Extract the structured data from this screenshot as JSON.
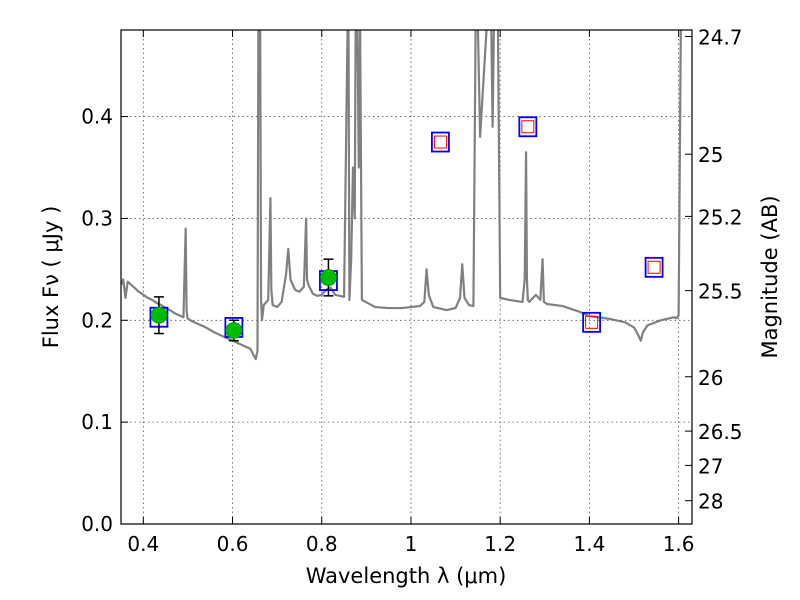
{
  "chart_data": {
    "type": "line",
    "xlabel": "Wavelength  λ (μm)",
    "ylabel": "Flux  Fν  ( μJy )",
    "y2label": "Magnitude (AB)",
    "xlim": [
      0.35,
      1.63
    ],
    "ylim": [
      0.0,
      0.485
    ],
    "grid": true,
    "x_ticks": [
      0.4,
      0.6,
      0.8,
      1.0,
      1.2,
      1.4,
      1.6
    ],
    "x_tick_labels": [
      "0.4",
      "0.6",
      "0.8",
      "1",
      "1.2",
      "1.4",
      "1.6"
    ],
    "y_ticks": [
      0.0,
      0.1,
      0.2,
      0.3,
      0.4
    ],
    "y_tick_labels": [
      "0.0",
      "0.1",
      "0.2",
      "0.3",
      "0.4"
    ],
    "y2_ticks": [
      {
        "label": "24.7",
        "mag": 24.7
      },
      {
        "label": "25",
        "mag": 25.0
      },
      {
        "label": "25.2",
        "mag": 25.2
      },
      {
        "label": "25.5",
        "mag": 25.5
      },
      {
        "label": "26",
        "mag": 26.0
      },
      {
        "label": "26.5",
        "mag": 26.5
      },
      {
        "label": "27",
        "mag": 27.0
      },
      {
        "label": "28",
        "mag": 28.0
      }
    ],
    "colors": {
      "spectrum": "#808080",
      "observed_marker": "#00bb00",
      "model_box": "#0000ff",
      "upper_limit_box": "#ff0000",
      "errorbar": "#000000",
      "grid": "#555555"
    },
    "series": [
      {
        "style": "spectrum-line",
        "x": [
          0.35,
          0.355,
          0.36,
          0.365,
          0.37,
          0.375,
          0.38,
          0.39,
          0.4,
          0.41,
          0.42,
          0.43,
          0.44,
          0.45,
          0.46,
          0.47,
          0.48,
          0.49,
          0.495,
          0.497,
          0.499,
          0.505,
          0.52,
          0.54,
          0.56,
          0.58,
          0.6,
          0.62,
          0.64,
          0.648,
          0.652,
          0.656,
          0.658,
          0.66,
          0.662,
          0.664,
          0.666,
          0.67,
          0.68,
          0.685,
          0.687,
          0.69,
          0.7,
          0.71,
          0.72,
          0.725,
          0.73,
          0.74,
          0.75,
          0.76,
          0.765,
          0.767,
          0.77,
          0.78,
          0.79,
          0.8,
          0.81,
          0.82,
          0.83,
          0.84,
          0.85,
          0.858,
          0.86,
          0.862,
          0.866,
          0.87,
          0.874,
          0.876,
          0.88,
          0.883,
          0.886,
          0.89,
          0.92,
          0.95,
          0.98,
          1.0,
          1.02,
          1.03,
          1.035,
          1.04,
          1.05,
          1.08,
          1.1,
          1.11,
          1.115,
          1.12,
          1.13,
          1.14,
          1.145,
          1.148,
          1.15,
          1.155,
          1.17,
          1.18,
          1.183,
          1.186,
          1.19,
          1.195,
          1.2,
          1.22,
          1.25,
          1.255,
          1.258,
          1.26,
          1.262,
          1.265,
          1.28,
          1.29,
          1.295,
          1.298,
          1.305,
          1.34,
          1.38,
          1.4,
          1.42,
          1.45,
          1.48,
          1.5,
          1.51,
          1.515,
          1.52,
          1.53,
          1.56,
          1.59,
          1.595,
          1.6,
          1.605,
          1.61,
          1.615,
          1.62,
          1.63
        ],
        "y": [
          0.235,
          0.24,
          0.222,
          0.238,
          0.236,
          0.234,
          0.232,
          0.228,
          0.225,
          0.222,
          0.22,
          0.217,
          0.215,
          0.212,
          0.21,
          0.207,
          0.205,
          0.203,
          0.29,
          0.21,
          0.202,
          0.2,
          0.197,
          0.193,
          0.188,
          0.184,
          0.18,
          0.176,
          0.172,
          0.165,
          0.162,
          0.17,
          0.49,
          0.49,
          0.49,
          0.22,
          0.2,
          0.215,
          0.22,
          0.32,
          0.23,
          0.215,
          0.213,
          0.218,
          0.245,
          0.27,
          0.24,
          0.23,
          0.228,
          0.233,
          0.3,
          0.24,
          0.235,
          0.226,
          0.224,
          0.225,
          0.23,
          0.232,
          0.225,
          0.224,
          0.223,
          0.49,
          0.49,
          0.22,
          0.26,
          0.35,
          0.3,
          0.49,
          0.49,
          0.35,
          0.49,
          0.22,
          0.213,
          0.212,
          0.212,
          0.213,
          0.214,
          0.218,
          0.25,
          0.225,
          0.213,
          0.21,
          0.212,
          0.222,
          0.255,
          0.222,
          0.215,
          0.214,
          0.49,
          0.49,
          0.49,
          0.38,
          0.49,
          0.49,
          0.39,
          0.49,
          0.49,
          0.49,
          0.222,
          0.22,
          0.218,
          0.24,
          0.365,
          0.24,
          0.22,
          0.218,
          0.225,
          0.22,
          0.26,
          0.218,
          0.216,
          0.214,
          0.208,
          0.204,
          0.203,
          0.201,
          0.198,
          0.193,
          0.185,
          0.18,
          0.188,
          0.195,
          0.2,
          0.203,
          0.202,
          0.205,
          0.49,
          0.49,
          0.49,
          0.49,
          0.49
        ]
      },
      {
        "style": "observed-points",
        "x": [
          0.435,
          0.603,
          0.815
        ],
        "y": [
          0.205,
          0.19,
          0.242
        ],
        "yerr": [
          0.018,
          0.01,
          0.018
        ]
      },
      {
        "style": "model-boxes",
        "x": [
          0.435,
          0.603,
          0.815,
          1.066,
          1.262,
          1.405,
          1.545
        ],
        "y": [
          0.203,
          0.193,
          0.239,
          0.375,
          0.39,
          0.198,
          0.252
        ]
      },
      {
        "style": "upper-limit-boxes",
        "x": [
          1.066,
          1.262,
          1.405,
          1.545
        ],
        "y": [
          0.375,
          0.39,
          0.198,
          0.252
        ]
      }
    ]
  }
}
